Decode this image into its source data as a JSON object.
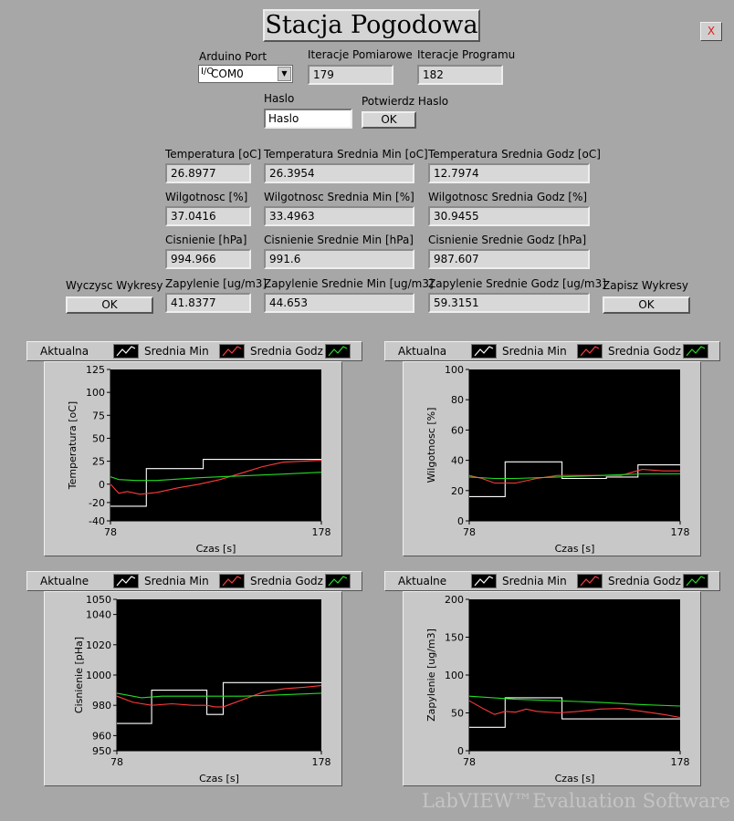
{
  "title": "Stacja Pogodowa",
  "close_label": "X",
  "arduino_port": {
    "label": "Arduino Port",
    "io": "I/O",
    "value": "COM0"
  },
  "iteracje_pomiarowe": {
    "label": "Iteracje Pomiarowe",
    "value": "179"
  },
  "iteracje_programu": {
    "label": "Iteracje Programu",
    "value": "182"
  },
  "haslo": {
    "label": "Haslo",
    "value": "Haslo"
  },
  "potwierdz": {
    "label": "Potwierdz Haslo",
    "button": "OK"
  },
  "readings": {
    "temp": {
      "label": "Temperatura [oC]",
      "value": "26.8977"
    },
    "temp_min": {
      "label": "Temperatura Srednia Min [oC]",
      "value": "26.3954"
    },
    "temp_godz": {
      "label": "Temperatura Srednia Godz [oC]",
      "value": "12.7974"
    },
    "wilg": {
      "label": "Wilgotnosc [%]",
      "value": "37.0416"
    },
    "wilg_min": {
      "label": "Wilgotnosc Srednia Min [%]",
      "value": "33.4963"
    },
    "wilg_godz": {
      "label": "Wilgotnosc Srednia Godz [%]",
      "value": "30.9455"
    },
    "cisn": {
      "label": "Cisnienie [hPa]",
      "value": "994.966"
    },
    "cisn_min": {
      "label": "Cisnienie Srednie Min [hPa]",
      "value": "991.6"
    },
    "cisn_godz": {
      "label": "Cisnienie Srednie Godz [hPa]",
      "value": "987.607"
    },
    "zap": {
      "label": "Zapylenie [ug/m3]",
      "value": "41.8377"
    },
    "zap_min": {
      "label": "Zapylenie Srednie Min [ug/m3]",
      "value": "44.653"
    },
    "zap_godz": {
      "label": "Zapylenie Srednie Godz [ug/m3]",
      "value": "59.3151"
    }
  },
  "wyczysc": {
    "label": "Wyczysc Wykresy",
    "button": "OK"
  },
  "zapisz": {
    "label": "Zapisz Wykresy",
    "button": "OK"
  },
  "legend_colors": {
    "white": "#ffffff",
    "red": "#ff3b3b",
    "green": "#22dd22"
  },
  "charts_meta": [
    {
      "legend": [
        "Aktualna",
        "Srednia Min",
        "Srednia Godz"
      ]
    },
    {
      "legend": [
        "Aktualna",
        "Srednia Min",
        "Srednia Godz"
      ]
    },
    {
      "legend": [
        "Aktualne",
        "Srednia Min",
        "Srednia Godz"
      ]
    },
    {
      "legend": [
        "Aktualne",
        "Srednia Min",
        "Srednia Godz"
      ]
    }
  ],
  "chart_data": [
    {
      "type": "line",
      "xlabel": "Czas [s]",
      "ylabel": "Temperatura [oC]",
      "xlim": [
        78,
        178
      ],
      "ylim": [
        -40,
        125
      ],
      "yticks": [
        -40,
        -20,
        0,
        25,
        50,
        75,
        100,
        125
      ],
      "xticks": [
        78,
        178
      ],
      "series": [
        {
          "name": "Aktualna",
          "color": "#ffffff",
          "step": true,
          "x": [
            78,
            95,
            95,
            122,
            122,
            178
          ],
          "y": [
            -24,
            -24,
            17,
            17,
            27,
            27
          ]
        },
        {
          "name": "Srednia Min",
          "color": "#ff3b3b",
          "x": [
            78,
            82,
            86,
            92,
            100,
            110,
            120,
            130,
            140,
            150,
            160,
            170,
            178
          ],
          "y": [
            0,
            -10,
            -8,
            -11,
            -9,
            -4,
            0,
            5,
            12,
            19,
            24,
            25,
            26
          ]
        },
        {
          "name": "Srednia Godz",
          "color": "#22dd22",
          "x": [
            78,
            82,
            90,
            100,
            120,
            140,
            160,
            178
          ],
          "y": [
            8,
            5,
            4,
            4,
            7,
            9,
            11,
            13
          ]
        }
      ]
    },
    {
      "type": "line",
      "xlabel": "Czas [s]",
      "ylabel": "Wilgotnosc [%]",
      "xlim": [
        78,
        178
      ],
      "ylim": [
        0,
        100
      ],
      "yticks": [
        0,
        20,
        40,
        60,
        80,
        100
      ],
      "xticks": [
        78,
        178
      ],
      "series": [
        {
          "name": "Aktualna",
          "color": "#ffffff",
          "step": true,
          "x": [
            78,
            95,
            95,
            122,
            122,
            143,
            143,
            158,
            158,
            178
          ],
          "y": [
            16,
            16,
            39,
            39,
            28,
            28,
            29,
            29,
            37,
            37
          ]
        },
        {
          "name": "Srednia Min",
          "color": "#ff3b3b",
          "x": [
            78,
            84,
            90,
            100,
            110,
            120,
            130,
            140,
            150,
            160,
            170,
            178
          ],
          "y": [
            30,
            28,
            25,
            25,
            28,
            30,
            30,
            30,
            30,
            34,
            33,
            33
          ]
        },
        {
          "name": "Srednia Godz",
          "color": "#22dd22",
          "x": [
            78,
            90,
            100,
            120,
            140,
            160,
            178
          ],
          "y": [
            29,
            28,
            28,
            29,
            30,
            31,
            31
          ]
        }
      ]
    },
    {
      "type": "line",
      "xlabel": "Czas [s]",
      "ylabel": "Cisnienie [pHa]",
      "xlim": [
        78,
        178
      ],
      "ylim": [
        950,
        1050
      ],
      "yticks": [
        950,
        960,
        980,
        1000,
        1020,
        1040,
        1050
      ],
      "xticks": [
        78,
        178
      ],
      "series": [
        {
          "name": "Aktualne",
          "color": "#ffffff",
          "step": true,
          "x": [
            78,
            95,
            95,
            122,
            122,
            130,
            130,
            178
          ],
          "y": [
            968,
            968,
            990,
            990,
            974,
            974,
            995,
            995
          ]
        },
        {
          "name": "Srednia Min",
          "color": "#ff3b3b",
          "x": [
            78,
            86,
            95,
            105,
            115,
            122,
            126,
            130,
            140,
            150,
            160,
            170,
            178
          ],
          "y": [
            986,
            982,
            980,
            981,
            980,
            980,
            979,
            979,
            984,
            989,
            991,
            992,
            993
          ]
        },
        {
          "name": "Srednia Godz",
          "color": "#22dd22",
          "x": [
            78,
            90,
            100,
            120,
            140,
            160,
            178
          ],
          "y": [
            988,
            985,
            986,
            986,
            986,
            987,
            988
          ]
        }
      ]
    },
    {
      "type": "line",
      "xlabel": "Czas [s]",
      "ylabel": "Zapylenie [ug/m3]",
      "xlim": [
        78,
        178
      ],
      "ylim": [
        0,
        200
      ],
      "yticks": [
        0,
        50,
        100,
        150,
        200
      ],
      "xticks": [
        78,
        178
      ],
      "series": [
        {
          "name": "Aktualne",
          "color": "#ffffff",
          "step": true,
          "x": [
            78,
            95,
            95,
            122,
            122,
            178
          ],
          "y": [
            31,
            31,
            70,
            70,
            42,
            42
          ]
        },
        {
          "name": "Srednia Min",
          "color": "#ff3b3b",
          "x": [
            78,
            85,
            90,
            95,
            100,
            105,
            110,
            120,
            130,
            140,
            150,
            160,
            170,
            178
          ],
          "y": [
            66,
            55,
            48,
            52,
            51,
            55,
            52,
            50,
            52,
            55,
            56,
            52,
            48,
            44
          ]
        },
        {
          "name": "Srednia Godz",
          "color": "#22dd22",
          "x": [
            78,
            100,
            120,
            140,
            160,
            178
          ],
          "y": [
            72,
            68,
            66,
            64,
            61,
            59
          ]
        }
      ]
    }
  ],
  "watermark": "LabVIEW™Evaluation Software"
}
